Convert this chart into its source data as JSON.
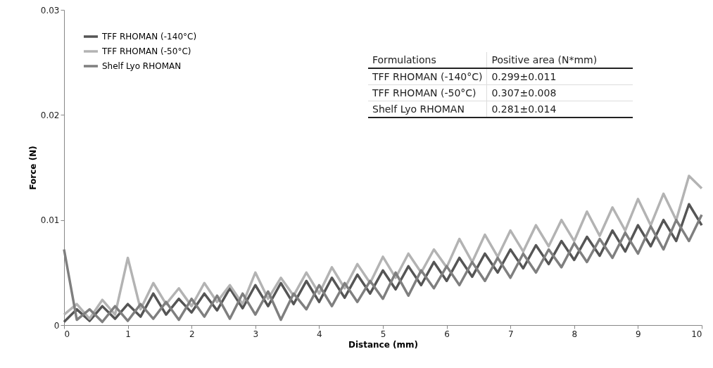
{
  "chart_data": {
    "type": "line",
    "xlabel": "Distance (mm)",
    "ylabel": "Force (N)",
    "x": [
      0,
      0.2,
      0.4,
      0.6,
      0.8,
      1,
      1.2,
      1.4,
      1.6,
      1.8,
      2,
      2.2,
      2.4,
      2.6,
      2.8,
      3,
      3.2,
      3.4,
      3.6,
      3.8,
      4,
      4.2,
      4.4,
      4.6,
      4.8,
      5,
      5.2,
      5.4,
      5.6,
      5.8,
      6,
      6.2,
      6.4,
      6.6,
      6.8,
      7,
      7.2,
      7.4,
      7.6,
      7.8,
      8,
      8.2,
      8.4,
      8.6,
      8.8,
      9,
      9.2,
      9.4,
      9.6,
      9.8,
      10
    ],
    "series": [
      {
        "name": "TFF RHOMAN (-140°C)",
        "color": "#555555",
        "values": [
          0.0003,
          0.0015,
          0.0004,
          0.0018,
          0.0006,
          0.002,
          0.0008,
          0.003,
          0.001,
          0.0025,
          0.0012,
          0.003,
          0.0014,
          0.0035,
          0.0016,
          0.0038,
          0.0018,
          0.004,
          0.002,
          0.0042,
          0.0022,
          0.0045,
          0.0026,
          0.0048,
          0.003,
          0.0052,
          0.0034,
          0.0056,
          0.0038,
          0.006,
          0.0042,
          0.0064,
          0.0046,
          0.0068,
          0.005,
          0.0072,
          0.0054,
          0.0076,
          0.0058,
          0.008,
          0.0062,
          0.0084,
          0.0066,
          0.009,
          0.007,
          0.0095,
          0.0075,
          0.01,
          0.008,
          0.0115,
          0.0095
        ]
      },
      {
        "name": "TFF RHOMAN (-50°C)",
        "color": "#b3b3b3",
        "values": [
          0.001,
          0.002,
          0.0006,
          0.0024,
          0.001,
          0.0064,
          0.0015,
          0.004,
          0.002,
          0.0035,
          0.0018,
          0.004,
          0.0022,
          0.0038,
          0.002,
          0.005,
          0.0025,
          0.0045,
          0.0028,
          0.005,
          0.003,
          0.0055,
          0.0035,
          0.0058,
          0.004,
          0.0065,
          0.0045,
          0.0068,
          0.005,
          0.0072,
          0.0055,
          0.0082,
          0.006,
          0.0086,
          0.0065,
          0.009,
          0.007,
          0.0095,
          0.0075,
          0.01,
          0.008,
          0.0108,
          0.0085,
          0.0112,
          0.009,
          0.012,
          0.0095,
          0.0125,
          0.01,
          0.0142,
          0.013
        ]
      },
      {
        "name": "Shelf Lyo RHOMAN",
        "color": "#7f7f7f",
        "values": [
          0.0072,
          0.0005,
          0.0015,
          0.0003,
          0.0018,
          0.0004,
          0.002,
          0.0006,
          0.0022,
          0.0005,
          0.0025,
          0.0008,
          0.0028,
          0.0006,
          0.003,
          0.001,
          0.0032,
          0.0005,
          0.003,
          0.0015,
          0.0038,
          0.0018,
          0.004,
          0.0022,
          0.0042,
          0.0025,
          0.005,
          0.0028,
          0.0052,
          0.0035,
          0.0056,
          0.0038,
          0.006,
          0.0042,
          0.0064,
          0.0045,
          0.0068,
          0.005,
          0.0072,
          0.0055,
          0.0078,
          0.006,
          0.0082,
          0.0064,
          0.0088,
          0.0068,
          0.0094,
          0.0072,
          0.01,
          0.008,
          0.0105
        ]
      }
    ],
    "xlim": [
      0,
      10
    ],
    "xticks": [
      0,
      1,
      2,
      3,
      4,
      5,
      6,
      7,
      8,
      9,
      10
    ],
    "ylim": [
      0,
      0.03
    ],
    "yticks": [
      0,
      0.01,
      0.02,
      0.03
    ],
    "legend": "top left",
    "annotations": [
      "Formulations",
      "Positive area (N*mm)",
      "TFF RHOMAN (-140°C)",
      "0.299±0.011",
      "TFF RHOMAN (-50°C)",
      "0.307±0.008",
      "Shelf Lyo RHOMAN",
      "0.281±0.014"
    ]
  }
}
